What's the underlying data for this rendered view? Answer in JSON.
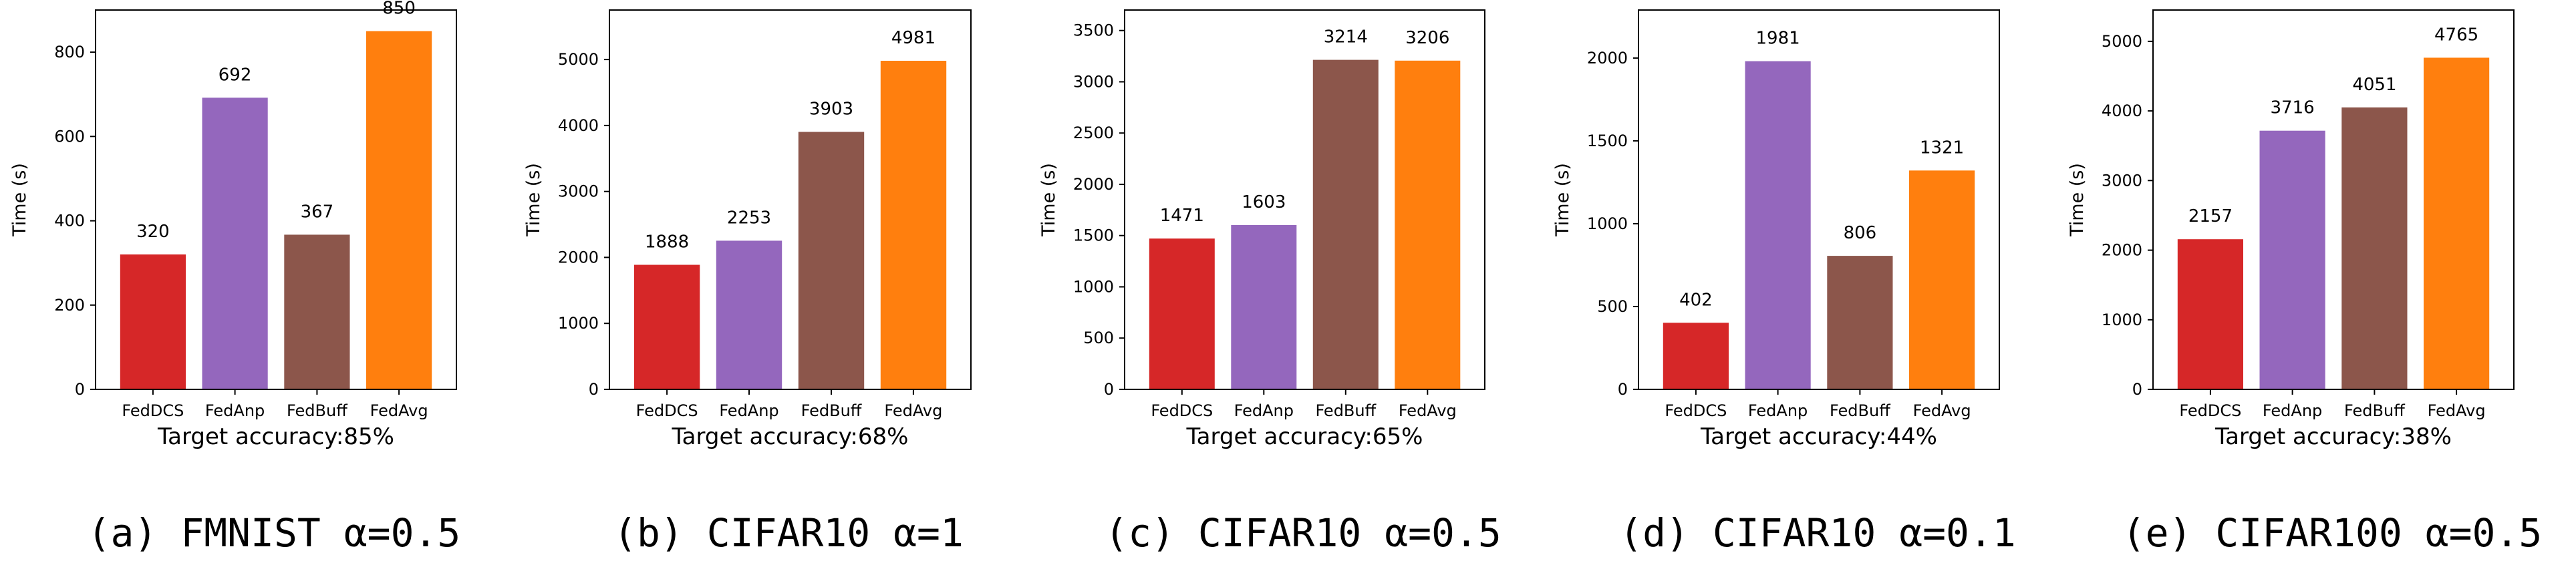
{
  "chart_data": [
    {
      "type": "bar",
      "caption": "(a) FMNIST α=0.5",
      "xlabel": "Target accuracy:85%",
      "ylabel": "Time (s)",
      "categories": [
        "FedDCS",
        "FedAnp",
        "FedBuff",
        "FedAvg"
      ],
      "values": [
        320,
        692,
        367,
        850
      ],
      "yticks": [
        0,
        200,
        400,
        600,
        800
      ],
      "ylim": [
        0,
        900
      ],
      "grid": false
    },
    {
      "type": "bar",
      "caption": "(b) CIFAR10 α=1",
      "xlabel": "Target accuracy:68%",
      "ylabel": "Time (s)",
      "categories": [
        "FedDCS",
        "FedAnp",
        "FedBuff",
        "FedAvg"
      ],
      "values": [
        1888,
        2253,
        3903,
        4981
      ],
      "yticks": [
        0,
        1000,
        2000,
        3000,
        4000,
        5000
      ],
      "ylim": [
        0,
        5750
      ],
      "grid": false
    },
    {
      "type": "bar",
      "caption": "(c) CIFAR10 α=0.5",
      "xlabel": "Target accuracy:65%",
      "ylabel": "Time (s)",
      "categories": [
        "FedDCS",
        "FedAnp",
        "FedBuff",
        "FedAvg"
      ],
      "values": [
        1471,
        1603,
        3214,
        3206
      ],
      "yticks": [
        0,
        500,
        1000,
        1500,
        2000,
        2500,
        3000,
        3500
      ],
      "ylim": [
        0,
        3700
      ],
      "grid": false
    },
    {
      "type": "bar",
      "caption": "(d) CIFAR10 α=0.1",
      "xlabel": "Target accuracy:44%",
      "ylabel": "Time (s)",
      "categories": [
        "FedDCS",
        "FedAnp",
        "FedBuff",
        "FedAvg"
      ],
      "values": [
        402,
        1981,
        806,
        1321
      ],
      "yticks": [
        0,
        500,
        1000,
        1500,
        2000
      ],
      "ylim": [
        0,
        2290
      ],
      "grid": false
    },
    {
      "type": "bar",
      "caption": "(e) CIFAR100 α=0.5",
      "xlabel": "Target accuracy:38%",
      "ylabel": "Time (s)",
      "categories": [
        "FedDCS",
        "FedAnp",
        "FedBuff",
        "FedAvg"
      ],
      "values": [
        2157,
        3716,
        4051,
        4765
      ],
      "yticks": [
        0,
        1000,
        2000,
        3000,
        4000,
        5000
      ],
      "ylim": [
        0,
        5450
      ],
      "grid": false
    }
  ],
  "bar_colors": [
    "#d62728",
    "#9467bd",
    "#8c564b",
    "#ff7f0e"
  ]
}
